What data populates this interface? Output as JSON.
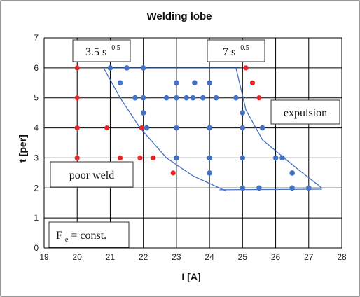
{
  "chart_data": {
    "type": "scatter",
    "title": "Welding lobe",
    "xlabel": "I [A]",
    "ylabel": "t [per]",
    "xlim": [
      19,
      28
    ],
    "ylim": [
      0,
      7
    ],
    "x_ticks": [
      "19",
      "20",
      "21",
      "22",
      "23",
      "24",
      "25",
      "26",
      "27",
      "28"
    ],
    "y_ticks": [
      "0",
      "1",
      "2",
      "3",
      "4",
      "5",
      "6",
      "7"
    ],
    "grid": true,
    "colors": {
      "red": "#e8262a",
      "blue": "#4472c4"
    },
    "series": [
      {
        "color": "red",
        "points": [
          [
            20,
            6
          ],
          [
            20,
            5
          ],
          [
            20,
            4
          ],
          [
            20,
            3
          ],
          [
            20.9,
            4
          ],
          [
            21.3,
            3
          ],
          [
            21.9,
            3
          ],
          [
            22.3,
            3
          ],
          [
            21.95,
            4
          ],
          [
            22.9,
            2.5
          ],
          [
            25.1,
            6
          ],
          [
            25.3,
            5.5
          ],
          [
            25.5,
            5
          ]
        ]
      },
      {
        "color": "blue",
        "points": [
          [
            21,
            6
          ],
          [
            21.5,
            6
          ],
          [
            22,
            6
          ],
          [
            21.3,
            5.5
          ],
          [
            23,
            5.5
          ],
          [
            23.55,
            5.5
          ],
          [
            24,
            5.5
          ],
          [
            21.75,
            5
          ],
          [
            22,
            5
          ],
          [
            22.7,
            5
          ],
          [
            23,
            5
          ],
          [
            23.3,
            5
          ],
          [
            23.5,
            5
          ],
          [
            23.8,
            5
          ],
          [
            24.2,
            5
          ],
          [
            24.8,
            5
          ],
          [
            22,
            4.5
          ],
          [
            25,
            4.5
          ],
          [
            22.1,
            4
          ],
          [
            23,
            4
          ],
          [
            24,
            4
          ],
          [
            25,
            4
          ],
          [
            25.6,
            4
          ],
          [
            23,
            3
          ],
          [
            24,
            3
          ],
          [
            25,
            3
          ],
          [
            26,
            3
          ],
          [
            26.2,
            3
          ],
          [
            24,
            2.5
          ],
          [
            26.5,
            2.5
          ],
          [
            25,
            2
          ],
          [
            25.5,
            2
          ],
          [
            26.5,
            2
          ],
          [
            27,
            2
          ]
        ]
      }
    ],
    "boundary": {
      "color": "blue",
      "left": [
        [
          20.8,
          6
        ],
        [
          21.3,
          5
        ],
        [
          21.9,
          4
        ],
        [
          22.7,
          3
        ],
        [
          23.5,
          2.4
        ],
        [
          24.5,
          1.9
        ]
      ],
      "right": [
        [
          24.8,
          6
        ],
        [
          25.1,
          4.6
        ],
        [
          25.6,
          3.6
        ],
        [
          26.7,
          2.6
        ],
        [
          27.4,
          2
        ]
      ],
      "top": [
        [
          20.9,
          6.02
        ],
        [
          24.9,
          6.02
        ]
      ],
      "bottom": [
        [
          24.3,
          1.94
        ],
        [
          27.4,
          1.96
        ]
      ]
    },
    "annotations": [
      {
        "id": "left_time",
        "text": "3.5 s",
        "sup": "0.5"
      },
      {
        "id": "right_time",
        "text": "7 s",
        "sup": "0.5"
      },
      {
        "id": "expulsion",
        "text": "expulsion"
      },
      {
        "id": "poor_weld",
        "text": "poor weld"
      },
      {
        "id": "force",
        "text": "F",
        "sub": "e",
        "rest": " = const."
      }
    ]
  }
}
